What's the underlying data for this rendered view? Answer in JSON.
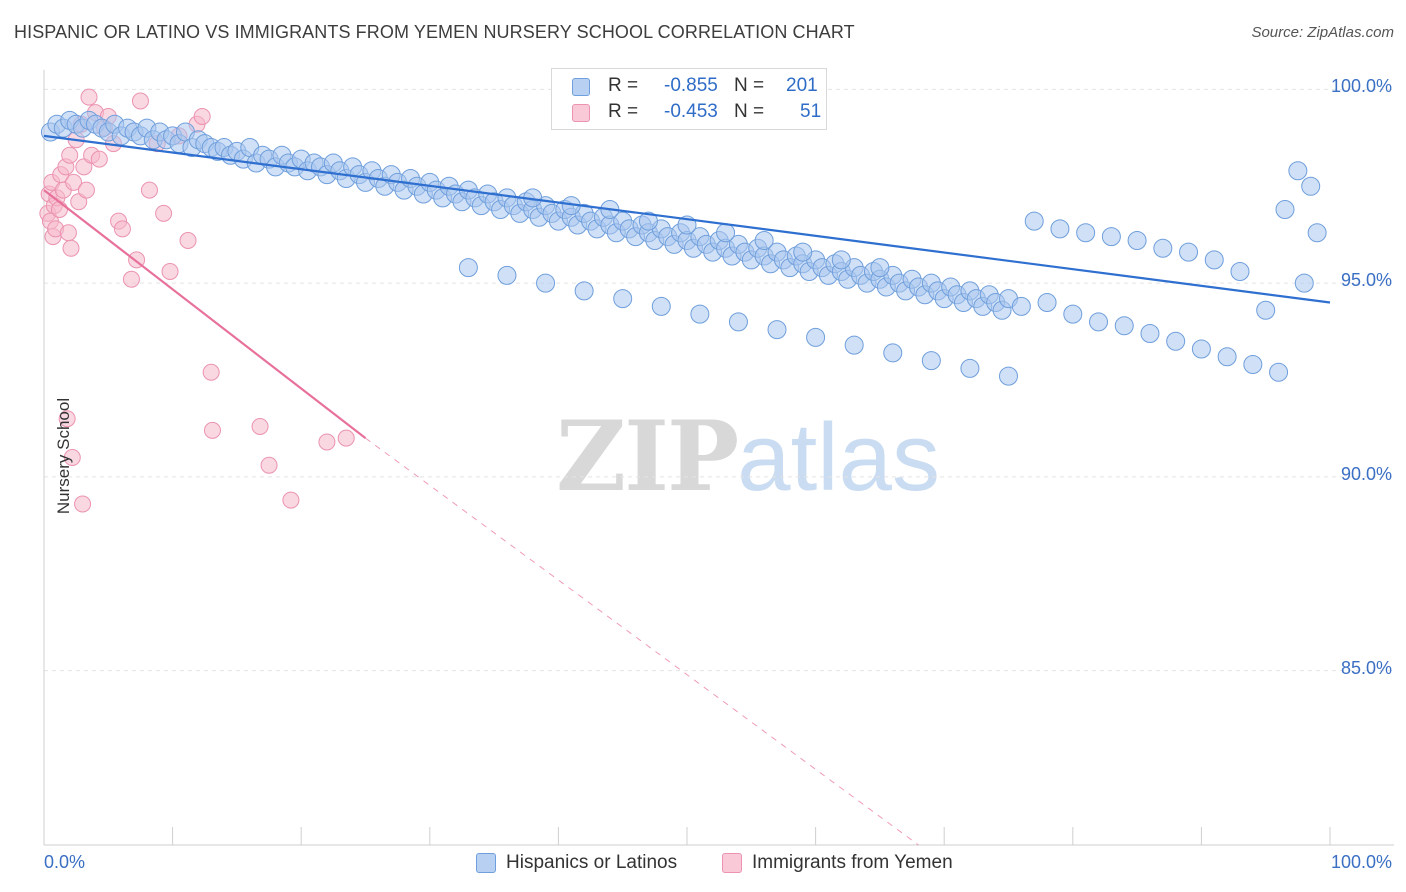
{
  "title": "HISPANIC OR LATINO VS IMMIGRANTS FROM YEMEN NURSERY SCHOOL CORRELATION CHART",
  "source": "Source: ZipAtlas.com",
  "watermark": {
    "zip": "ZIP",
    "atlas": "atlas"
  },
  "legend_top": {
    "rows": [
      {
        "r_label": "R = ",
        "r_value": "-0.855",
        "n_label": "N = ",
        "n_value": "201"
      },
      {
        "r_label": "R = ",
        "r_value": "-0.453",
        "n_label": "N = ",
        "n_value": "51"
      }
    ]
  },
  "legend_bottom": [
    "Hispanics or Latinos",
    "Immigrants from Yemen"
  ],
  "colors": {
    "blue_fill": "#a9c7ef",
    "blue_stroke": "#6f9fdc",
    "blue_line": "#2e6fd0",
    "pink_fill": "#f6b8cb",
    "pink_stroke": "#eb93b0",
    "pink_line": "#e8719b",
    "grid": "#e3e3e3",
    "tick_text": "#3b6fc4"
  },
  "chart_data": {
    "type": "scatter",
    "title": "HISPANIC OR LATINO VS IMMIGRANTS FROM YEMEN NURSERY SCHOOL CORRELATION CHART",
    "xlabel": "",
    "ylabel": "Nursery School",
    "xlim": [
      0,
      100
    ],
    "ylim": [
      80.5,
      100.5
    ],
    "x_tick_labels": [
      "0.0%",
      "100.0%"
    ],
    "y_ticks": [
      100,
      95,
      90,
      85
    ],
    "y_tick_labels": [
      "100.0%",
      "95.0%",
      "90.0%",
      "85.0%"
    ],
    "grid": true,
    "legend_position": "top-center",
    "series": [
      {
        "name": "Hispanics or Latinos",
        "color": "#a9c7ef",
        "r": -0.855,
        "n": 201,
        "trendline": {
          "x": [
            0,
            100
          ],
          "y": [
            98.8,
            94.5
          ]
        },
        "points": [
          [
            0.5,
            98.9
          ],
          [
            1,
            99.1
          ],
          [
            1.5,
            99.0
          ],
          [
            2,
            99.2
          ],
          [
            2.5,
            99.1
          ],
          [
            3,
            99.0
          ],
          [
            3.5,
            99.2
          ],
          [
            4,
            99.1
          ],
          [
            4.5,
            99.0
          ],
          [
            5,
            98.9
          ],
          [
            5.5,
            99.1
          ],
          [
            6,
            98.8
          ],
          [
            6.5,
            99.0
          ],
          [
            7,
            98.9
          ],
          [
            7.5,
            98.8
          ],
          [
            8,
            99.0
          ],
          [
            8.5,
            98.7
          ],
          [
            9,
            98.9
          ],
          [
            9.5,
            98.7
          ],
          [
            10,
            98.8
          ],
          [
            10.5,
            98.6
          ],
          [
            11,
            98.9
          ],
          [
            11.5,
            98.5
          ],
          [
            12,
            98.7
          ],
          [
            12.5,
            98.6
          ],
          [
            13,
            98.5
          ],
          [
            13.5,
            98.4
          ],
          [
            14,
            98.5
          ],
          [
            14.5,
            98.3
          ],
          [
            15,
            98.4
          ],
          [
            15.5,
            98.2
          ],
          [
            16,
            98.5
          ],
          [
            16.5,
            98.1
          ],
          [
            17,
            98.3
          ],
          [
            17.5,
            98.2
          ],
          [
            18,
            98.0
          ],
          [
            18.5,
            98.3
          ],
          [
            19,
            98.1
          ],
          [
            19.5,
            98.0
          ],
          [
            20,
            98.2
          ],
          [
            20.5,
            97.9
          ],
          [
            21,
            98.1
          ],
          [
            21.5,
            98.0
          ],
          [
            22,
            97.8
          ],
          [
            22.5,
            98.1
          ],
          [
            23,
            97.9
          ],
          [
            23.5,
            97.7
          ],
          [
            24,
            98.0
          ],
          [
            24.5,
            97.8
          ],
          [
            25,
            97.6
          ],
          [
            25.5,
            97.9
          ],
          [
            26,
            97.7
          ],
          [
            26.5,
            97.5
          ],
          [
            27,
            97.8
          ],
          [
            27.5,
            97.6
          ],
          [
            28,
            97.4
          ],
          [
            28.5,
            97.7
          ],
          [
            29,
            97.5
          ],
          [
            29.5,
            97.3
          ],
          [
            30,
            97.6
          ],
          [
            30.5,
            97.4
          ],
          [
            31,
            97.2
          ],
          [
            31.5,
            97.5
          ],
          [
            32,
            97.3
          ],
          [
            32.5,
            97.1
          ],
          [
            33,
            97.4
          ],
          [
            33.5,
            97.2
          ],
          [
            34,
            97.0
          ],
          [
            34.5,
            97.3
          ],
          [
            35,
            97.1
          ],
          [
            35.5,
            96.9
          ],
          [
            36,
            97.2
          ],
          [
            36.5,
            97.0
          ],
          [
            37,
            96.8
          ],
          [
            37.5,
            97.1
          ],
          [
            38,
            96.9
          ],
          [
            38.5,
            96.7
          ],
          [
            39,
            97.0
          ],
          [
            39.5,
            96.8
          ],
          [
            40,
            96.6
          ],
          [
            40.5,
            96.9
          ],
          [
            41,
            96.7
          ],
          [
            41.5,
            96.5
          ],
          [
            42,
            96.8
          ],
          [
            42.5,
            96.6
          ],
          [
            43,
            96.4
          ],
          [
            43.5,
            96.7
          ],
          [
            44,
            96.5
          ],
          [
            44.5,
            96.3
          ],
          [
            45,
            96.6
          ],
          [
            45.5,
            96.4
          ],
          [
            46,
            96.2
          ],
          [
            46.5,
            96.5
          ],
          [
            47,
            96.3
          ],
          [
            47.5,
            96.1
          ],
          [
            48,
            96.4
          ],
          [
            48.5,
            96.2
          ],
          [
            49,
            96.0
          ],
          [
            49.5,
            96.3
          ],
          [
            50,
            96.1
          ],
          [
            50.5,
            95.9
          ],
          [
            51,
            96.2
          ],
          [
            51.5,
            96.0
          ],
          [
            52,
            95.8
          ],
          [
            52.5,
            96.1
          ],
          [
            53,
            95.9
          ],
          [
            53.5,
            95.7
          ],
          [
            54,
            96.0
          ],
          [
            54.5,
            95.8
          ],
          [
            55,
            95.6
          ],
          [
            55.5,
            95.9
          ],
          [
            56,
            95.7
          ],
          [
            56.5,
            95.5
          ],
          [
            57,
            95.8
          ],
          [
            57.5,
            95.6
          ],
          [
            58,
            95.4
          ],
          [
            58.5,
            95.7
          ],
          [
            59,
            95.5
          ],
          [
            59.5,
            95.3
          ],
          [
            60,
            95.6
          ],
          [
            60.5,
            95.4
          ],
          [
            61,
            95.2
          ],
          [
            61.5,
            95.5
          ],
          [
            62,
            95.3
          ],
          [
            62.5,
            95.1
          ],
          [
            63,
            95.4
          ],
          [
            63.5,
            95.2
          ],
          [
            64,
            95.0
          ],
          [
            64.5,
            95.3
          ],
          [
            65,
            95.1
          ],
          [
            65.5,
            94.9
          ],
          [
            66,
            95.2
          ],
          [
            66.5,
            95.0
          ],
          [
            67,
            94.8
          ],
          [
            67.5,
            95.1
          ],
          [
            68,
            94.9
          ],
          [
            68.5,
            94.7
          ],
          [
            69,
            95.0
          ],
          [
            69.5,
            94.8
          ],
          [
            70,
            94.6
          ],
          [
            70.5,
            94.9
          ],
          [
            71,
            94.7
          ],
          [
            71.5,
            94.5
          ],
          [
            72,
            94.8
          ],
          [
            72.5,
            94.6
          ],
          [
            73,
            94.4
          ],
          [
            73.5,
            94.7
          ],
          [
            74,
            94.5
          ],
          [
            74.5,
            94.3
          ],
          [
            75,
            94.6
          ],
          [
            38,
            97.2
          ],
          [
            41,
            97.0
          ],
          [
            44,
            96.9
          ],
          [
            47,
            96.6
          ],
          [
            50,
            96.5
          ],
          [
            53,
            96.3
          ],
          [
            56,
            96.1
          ],
          [
            59,
            95.8
          ],
          [
            62,
            95.6
          ],
          [
            65,
            95.4
          ],
          [
            33,
            95.4
          ],
          [
            36,
            95.2
          ],
          [
            39,
            95.0
          ],
          [
            42,
            94.8
          ],
          [
            45,
            94.6
          ],
          [
            48,
            94.4
          ],
          [
            51,
            94.2
          ],
          [
            54,
            94.0
          ],
          [
            57,
            93.8
          ],
          [
            60,
            93.6
          ],
          [
            63,
            93.4
          ],
          [
            66,
            93.2
          ],
          [
            69,
            93.0
          ],
          [
            72,
            92.8
          ],
          [
            75,
            92.6
          ],
          [
            78,
            94.5
          ],
          [
            80,
            94.2
          ],
          [
            82,
            94.0
          ],
          [
            84,
            93.9
          ],
          [
            86,
            93.7
          ],
          [
            88,
            93.5
          ],
          [
            90,
            93.3
          ],
          [
            92,
            93.1
          ],
          [
            94,
            92.9
          ],
          [
            96,
            92.7
          ],
          [
            98,
            95.0
          ],
          [
            99,
            96.3
          ],
          [
            98.5,
            97.5
          ],
          [
            97.5,
            97.9
          ],
          [
            96.5,
            96.9
          ],
          [
            95,
            94.3
          ],
          [
            93,
            95.3
          ],
          [
            91,
            95.6
          ],
          [
            89,
            95.8
          ],
          [
            87,
            95.9
          ],
          [
            85,
            96.1
          ],
          [
            83,
            96.2
          ],
          [
            81,
            96.3
          ],
          [
            79,
            96.4
          ],
          [
            77,
            96.6
          ],
          [
            76,
            94.4
          ]
        ]
      },
      {
        "name": "Immigrants from Yemen",
        "color": "#f6b8cb",
        "r": -0.453,
        "n": 51,
        "trendline": {
          "x": [
            0,
            25
          ],
          "y": [
            97.4,
            91.0
          ]
        },
        "trendline_dashed_extension": {
          "x": [
            25,
            68
          ],
          "y": [
            91.0,
            80.5
          ]
        },
        "points": [
          [
            0.3,
            96.8
          ],
          [
            0.4,
            97.3
          ],
          [
            0.5,
            96.6
          ],
          [
            0.6,
            97.6
          ],
          [
            0.7,
            96.2
          ],
          [
            0.8,
            97.0
          ],
          [
            0.9,
            96.4
          ],
          [
            1.0,
            97.2
          ],
          [
            1.2,
            96.9
          ],
          [
            1.3,
            97.8
          ],
          [
            1.5,
            97.4
          ],
          [
            1.7,
            98.0
          ],
          [
            1.9,
            96.3
          ],
          [
            2.0,
            98.3
          ],
          [
            2.1,
            95.9
          ],
          [
            2.3,
            97.6
          ],
          [
            2.5,
            98.7
          ],
          [
            2.7,
            97.1
          ],
          [
            2.9,
            99.1
          ],
          [
            3.1,
            98.0
          ],
          [
            3.3,
            97.4
          ],
          [
            3.5,
            99.8
          ],
          [
            3.7,
            98.3
          ],
          [
            4.0,
            99.4
          ],
          [
            4.3,
            98.2
          ],
          [
            4.7,
            99.0
          ],
          [
            5.0,
            99.3
          ],
          [
            5.4,
            98.6
          ],
          [
            5.8,
            96.6
          ],
          [
            6.1,
            96.4
          ],
          [
            6.8,
            95.1
          ],
          [
            7.2,
            95.6
          ],
          [
            7.5,
            99.7
          ],
          [
            8.2,
            97.4
          ],
          [
            8.8,
            98.6
          ],
          [
            9.3,
            96.8
          ],
          [
            9.8,
            95.3
          ],
          [
            10.5,
            98.8
          ],
          [
            11.2,
            96.1
          ],
          [
            11.9,
            99.1
          ],
          [
            12.3,
            99.3
          ],
          [
            13.0,
            92.7
          ],
          [
            13.1,
            91.2
          ],
          [
            16.8,
            91.3
          ],
          [
            17.5,
            90.3
          ],
          [
            19.2,
            89.4
          ],
          [
            22.0,
            90.9
          ],
          [
            23.5,
            91.0
          ],
          [
            1.8,
            91.5
          ],
          [
            2.2,
            90.5
          ],
          [
            3.0,
            89.3
          ]
        ]
      }
    ]
  }
}
